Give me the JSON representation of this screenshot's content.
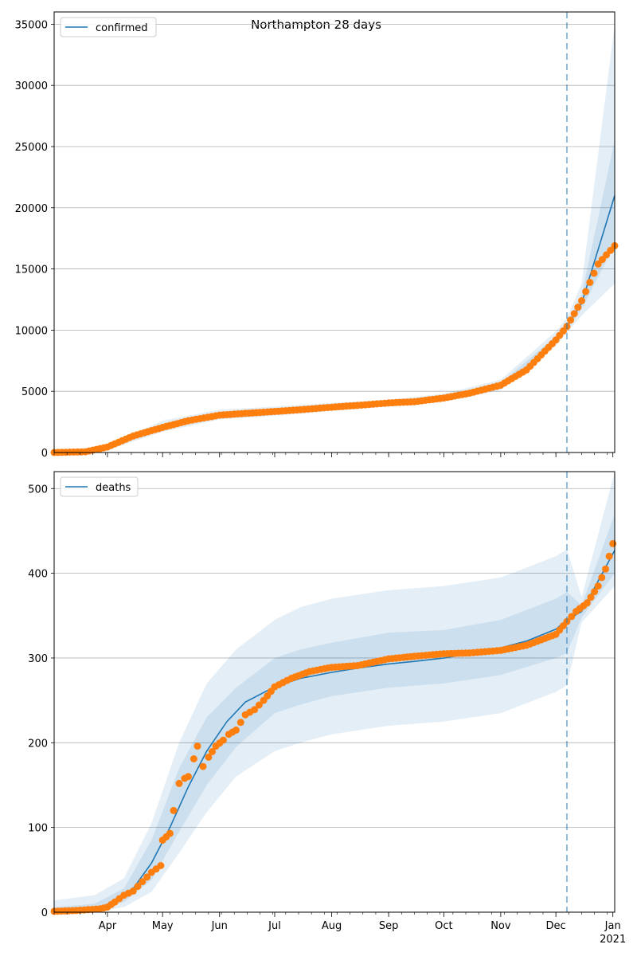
{
  "figure": {
    "title": "Northampton 28 days"
  },
  "x_axis": {
    "months": [
      "Apr",
      "May",
      "Jun",
      "Jul",
      "Aug",
      "Sep",
      "Oct",
      "Nov",
      "Dec",
      "Jan"
    ],
    "year_label": "2021"
  },
  "colors": {
    "line": "#1f77b4",
    "points": "#ff7f0e",
    "band": "#1f77b4",
    "grid": "#b0b0b0",
    "marker_line": "#1f77b4"
  },
  "chart_data": [
    {
      "type": "line",
      "title": "Northampton 28 days",
      "legend": "top-left",
      "grid": "horizontal",
      "x_range": [
        "2020-03-03",
        "2021-01-02"
      ],
      "ylim": [
        0,
        36000
      ],
      "yticks": [
        0,
        5000,
        10000,
        15000,
        20000,
        25000,
        30000,
        35000
      ],
      "vertical_marker_date": "2020-12-07",
      "series": [
        {
          "name": "confirmed",
          "kind": "model_line",
          "x": [
            "2020-03-03",
            "2020-03-20",
            "2020-04-01",
            "2020-04-15",
            "2020-05-01",
            "2020-05-15",
            "2020-06-01",
            "2020-06-15",
            "2020-07-01",
            "2020-07-15",
            "2020-08-01",
            "2020-08-15",
            "2020-09-01",
            "2020-09-15",
            "2020-10-01",
            "2020-10-15",
            "2020-11-01",
            "2020-11-15",
            "2020-12-01",
            "2020-12-07",
            "2020-12-15",
            "2021-01-02"
          ],
          "y": [
            0,
            60,
            400,
            1300,
            2100,
            2700,
            3050,
            3200,
            3350,
            3500,
            3700,
            3850,
            4000,
            4150,
            4450,
            4900,
            5500,
            6700,
            9200,
            10300,
            12200,
            21000
          ]
        },
        {
          "name": "confirmed_observed",
          "kind": "points",
          "x": [
            "2020-03-03",
            "2020-03-20",
            "2020-04-01",
            "2020-04-15",
            "2020-05-01",
            "2020-05-15",
            "2020-06-01",
            "2020-06-15",
            "2020-07-01",
            "2020-07-15",
            "2020-08-01",
            "2020-08-15",
            "2020-09-01",
            "2020-09-15",
            "2020-10-01",
            "2020-10-15",
            "2020-11-01",
            "2020-11-15",
            "2020-12-01",
            "2020-12-07",
            "2020-12-15",
            "2020-12-24",
            "2021-01-02"
          ],
          "y": [
            0,
            60,
            450,
            1350,
            2050,
            2600,
            3050,
            3200,
            3350,
            3500,
            3700,
            3850,
            4050,
            4150,
            4450,
            4850,
            5500,
            6750,
            9200,
            10300,
            12400,
            15400,
            16900
          ]
        },
        {
          "name": "confirmed_band_outer",
          "kind": "band",
          "x": [
            "2020-03-03",
            "2020-04-01",
            "2020-05-01",
            "2020-06-01",
            "2020-07-01",
            "2020-08-01",
            "2020-09-01",
            "2020-10-01",
            "2020-11-01",
            "2020-12-01",
            "2020-12-07",
            "2020-12-15",
            "2021-01-02"
          ],
          "low": [
            0,
            200,
            1700,
            2700,
            3000,
            3400,
            3750,
            4150,
            5100,
            8700,
            9800,
            11200,
            13800
          ],
          "high": [
            0,
            600,
            2600,
            3500,
            3750,
            4050,
            4300,
            4800,
            5950,
            9900,
            11000,
            13800,
            35000
          ]
        },
        {
          "name": "confirmed_band_inner",
          "kind": "band",
          "x": [
            "2020-03-03",
            "2020-04-01",
            "2020-05-01",
            "2020-06-01",
            "2020-07-01",
            "2020-08-01",
            "2020-09-01",
            "2020-10-01",
            "2020-11-01",
            "2020-12-01",
            "2020-12-07",
            "2020-12-15",
            "2021-01-02"
          ],
          "low": [
            0,
            300,
            1900,
            2900,
            3200,
            3550,
            3900,
            4300,
            5300,
            9000,
            10050,
            11700,
            17000
          ],
          "high": [
            0,
            500,
            2350,
            3250,
            3500,
            3850,
            4150,
            4600,
            5700,
            9500,
            10600,
            12900,
            25500
          ]
        }
      ]
    },
    {
      "type": "line",
      "legend": "top-left",
      "grid": "horizontal",
      "x_range": [
        "2020-03-03",
        "2021-01-02"
      ],
      "ylim": [
        0,
        520
      ],
      "yticks": [
        0,
        100,
        200,
        300,
        400,
        500
      ],
      "vertical_marker_date": "2020-12-07",
      "series": [
        {
          "name": "deaths",
          "kind": "model_line",
          "x": [
            "2020-03-03",
            "2020-03-25",
            "2020-04-05",
            "2020-04-15",
            "2020-04-25",
            "2020-05-05",
            "2020-05-15",
            "2020-05-25",
            "2020-06-05",
            "2020-06-15",
            "2020-07-01",
            "2020-07-15",
            "2020-08-01",
            "2020-08-15",
            "2020-09-01",
            "2020-09-15",
            "2020-10-01",
            "2020-10-15",
            "2020-11-01",
            "2020-11-15",
            "2020-12-01",
            "2020-12-07",
            "2020-12-15",
            "2021-01-02"
          ],
          "y": [
            1,
            4,
            12,
            28,
            58,
            100,
            148,
            190,
            225,
            248,
            266,
            276,
            283,
            288,
            293,
            296,
            300,
            305,
            312,
            320,
            334,
            345,
            355,
            427
          ]
        },
        {
          "name": "deaths_observed",
          "kind": "points",
          "x": [
            "2020-03-03",
            "2020-03-15",
            "2020-03-28",
            "2020-04-01",
            "2020-04-05",
            "2020-04-10",
            "2020-04-15",
            "2020-04-20",
            "2020-04-25",
            "2020-04-30",
            "2020-05-01",
            "2020-05-05",
            "2020-05-07",
            "2020-05-10",
            "2020-05-13",
            "2020-05-15",
            "2020-05-18",
            "2020-05-20",
            "2020-05-23",
            "2020-05-26",
            "2020-05-30",
            "2020-06-03",
            "2020-06-06",
            "2020-06-10",
            "2020-06-15",
            "2020-06-20",
            "2020-06-25",
            "2020-07-01",
            "2020-07-10",
            "2020-07-20",
            "2020-08-01",
            "2020-08-15",
            "2020-09-01",
            "2020-09-15",
            "2020-10-01",
            "2020-10-15",
            "2020-11-01",
            "2020-11-15",
            "2020-12-01",
            "2020-12-07",
            "2020-12-12",
            "2020-12-18",
            "2020-12-24",
            "2020-12-28",
            "2021-01-01"
          ],
          "y": [
            1,
            2,
            4,
            6,
            12,
            20,
            25,
            36,
            47,
            55,
            85,
            93,
            120,
            152,
            158,
            160,
            181,
            196,
            172,
            183,
            196,
            203,
            210,
            215,
            233,
            239,
            250,
            266,
            276,
            284,
            289,
            291,
            299,
            302,
            305,
            306,
            309,
            315,
            328,
            343,
            355,
            365,
            385,
            405,
            435
          ]
        },
        {
          "name": "deaths_band_outer",
          "kind": "band",
          "x": [
            "2020-03-03",
            "2020-03-25",
            "2020-04-10",
            "2020-04-25",
            "2020-05-10",
            "2020-05-25",
            "2020-06-10",
            "2020-07-01",
            "2020-07-15",
            "2020-08-01",
            "2020-09-01",
            "2020-10-01",
            "2020-11-01",
            "2020-12-01",
            "2020-12-07",
            "2020-12-15",
            "2021-01-02"
          ],
          "low": [
            0,
            0,
            6,
            24,
            70,
            118,
            160,
            190,
            200,
            210,
            220,
            225,
            235,
            260,
            268,
            342,
            385
          ],
          "high": [
            14,
            20,
            40,
            105,
            200,
            270,
            310,
            345,
            360,
            370,
            380,
            385,
            395,
            420,
            428,
            372,
            520
          ]
        },
        {
          "name": "deaths_band_inner",
          "kind": "band",
          "x": [
            "2020-03-03",
            "2020-03-25",
            "2020-04-10",
            "2020-04-25",
            "2020-05-10",
            "2020-05-25",
            "2020-06-10",
            "2020-07-01",
            "2020-07-15",
            "2020-08-01",
            "2020-09-01",
            "2020-10-01",
            "2020-11-01",
            "2020-12-01",
            "2020-12-07",
            "2020-12-15",
            "2021-01-02"
          ],
          "low": [
            0,
            2,
            12,
            38,
            95,
            150,
            195,
            235,
            245,
            255,
            265,
            270,
            280,
            300,
            306,
            348,
            400
          ],
          "high": [
            6,
            10,
            28,
            85,
            170,
            230,
            265,
            300,
            310,
            318,
            330,
            333,
            345,
            370,
            378,
            362,
            470
          ]
        }
      ]
    }
  ]
}
